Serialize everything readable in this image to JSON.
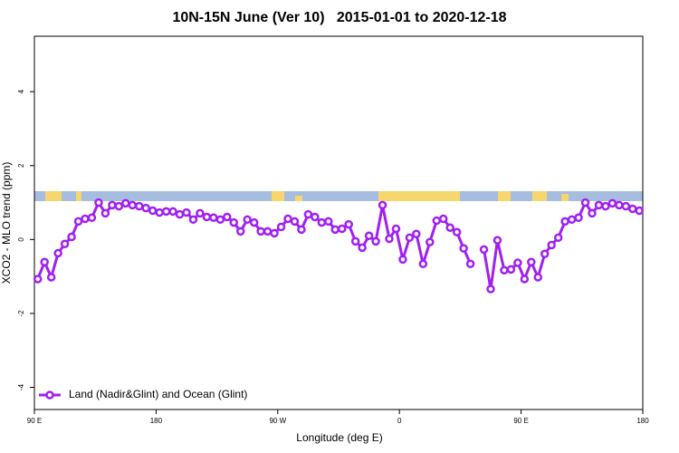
{
  "chart_data": {
    "type": "line",
    "title": "10N-15N June (Ver 10)   2015-01-01 to 2020-12-18",
    "x_label": "Longitude (deg E)",
    "y_label": "XCO2 - MLO trend (ppm)",
    "xlim": [
      90,
      540
    ],
    "ylim": [
      -4.6,
      5.5
    ],
    "xticks": [
      {
        "value": 90,
        "label": "90 E"
      },
      {
        "value": 180,
        "label": "180"
      },
      {
        "value": 270,
        "label": "90 W"
      },
      {
        "value": 360,
        "label": "0"
      },
      {
        "value": 450,
        "label": "90 E"
      },
      {
        "value": 540,
        "label": "180"
      }
    ],
    "yticks": [
      -4,
      -2,
      0,
      2,
      4
    ],
    "legend": "bottom-left",
    "x": [
      92.5,
      97.5,
      102.5,
      107.5,
      112.5,
      117.5,
      122.5,
      127.5,
      132.5,
      137.5,
      142.5,
      147.5,
      152.5,
      157.5,
      162.5,
      167.5,
      172.5,
      177.5,
      182.5,
      187.5,
      192.5,
      197.5,
      202.5,
      207.5,
      212.5,
      217.5,
      222.5,
      227.5,
      232.5,
      237.5,
      242.5,
      247.5,
      252.5,
      257.5,
      262.5,
      267.5,
      272.5,
      277.5,
      282.5,
      287.5,
      292.5,
      297.5,
      302.5,
      307.5,
      312.5,
      317.5,
      322.5,
      327.5,
      332.5,
      337.5,
      342.5,
      347.5,
      352.5,
      357.5,
      362.5,
      367.5,
      372.5,
      377.5,
      382.5,
      387.5,
      392.5,
      397.5,
      402.5,
      407.5,
      412.5,
      417.5,
      422.5,
      427.5,
      432.5,
      437.5,
      442.5,
      447.5,
      452.5,
      457.5,
      462.5,
      467.5,
      472.5,
      477.5,
      482.5,
      487.5,
      492.5,
      497.5,
      502.5,
      507.5,
      512.5,
      517.5,
      522.5,
      527.5,
      532.5,
      537.5
    ],
    "series": [
      {
        "name": "Land (Nadir&Glint) and Ocean (Glint)",
        "color": "#a020f0",
        "values": [
          -1.07,
          -0.61,
          -1.02,
          -0.37,
          -0.12,
          0.07,
          0.49,
          0.56,
          0.59,
          1.0,
          0.71,
          0.93,
          0.9,
          0.98,
          0.93,
          0.9,
          0.85,
          0.78,
          0.73,
          0.76,
          0.76,
          0.68,
          0.73,
          0.54,
          0.71,
          0.61,
          0.59,
          0.54,
          0.61,
          0.46,
          0.22,
          0.54,
          0.46,
          0.22,
          0.22,
          0.17,
          0.34,
          0.56,
          0.49,
          0.27,
          0.68,
          0.61,
          0.46,
          0.49,
          0.27,
          0.29,
          0.41,
          -0.05,
          -0.22,
          0.1,
          -0.05,
          0.93,
          0.02,
          0.29,
          -0.54,
          0.05,
          0.15,
          -0.66,
          -0.07,
          0.51,
          0.56,
          0.32,
          0.2,
          -0.24,
          -0.66,
          null,
          -0.27,
          -1.34,
          -0.02,
          -0.83,
          -0.81,
          -0.63,
          -1.07,
          -0.61,
          -1.02,
          -0.39,
          -0.15,
          0.05,
          0.49,
          0.54,
          0.59,
          1.0,
          0.71,
          0.93,
          0.9,
          0.98,
          0.93,
          0.9,
          0.83,
          0.78
        ]
      }
    ]
  }
}
